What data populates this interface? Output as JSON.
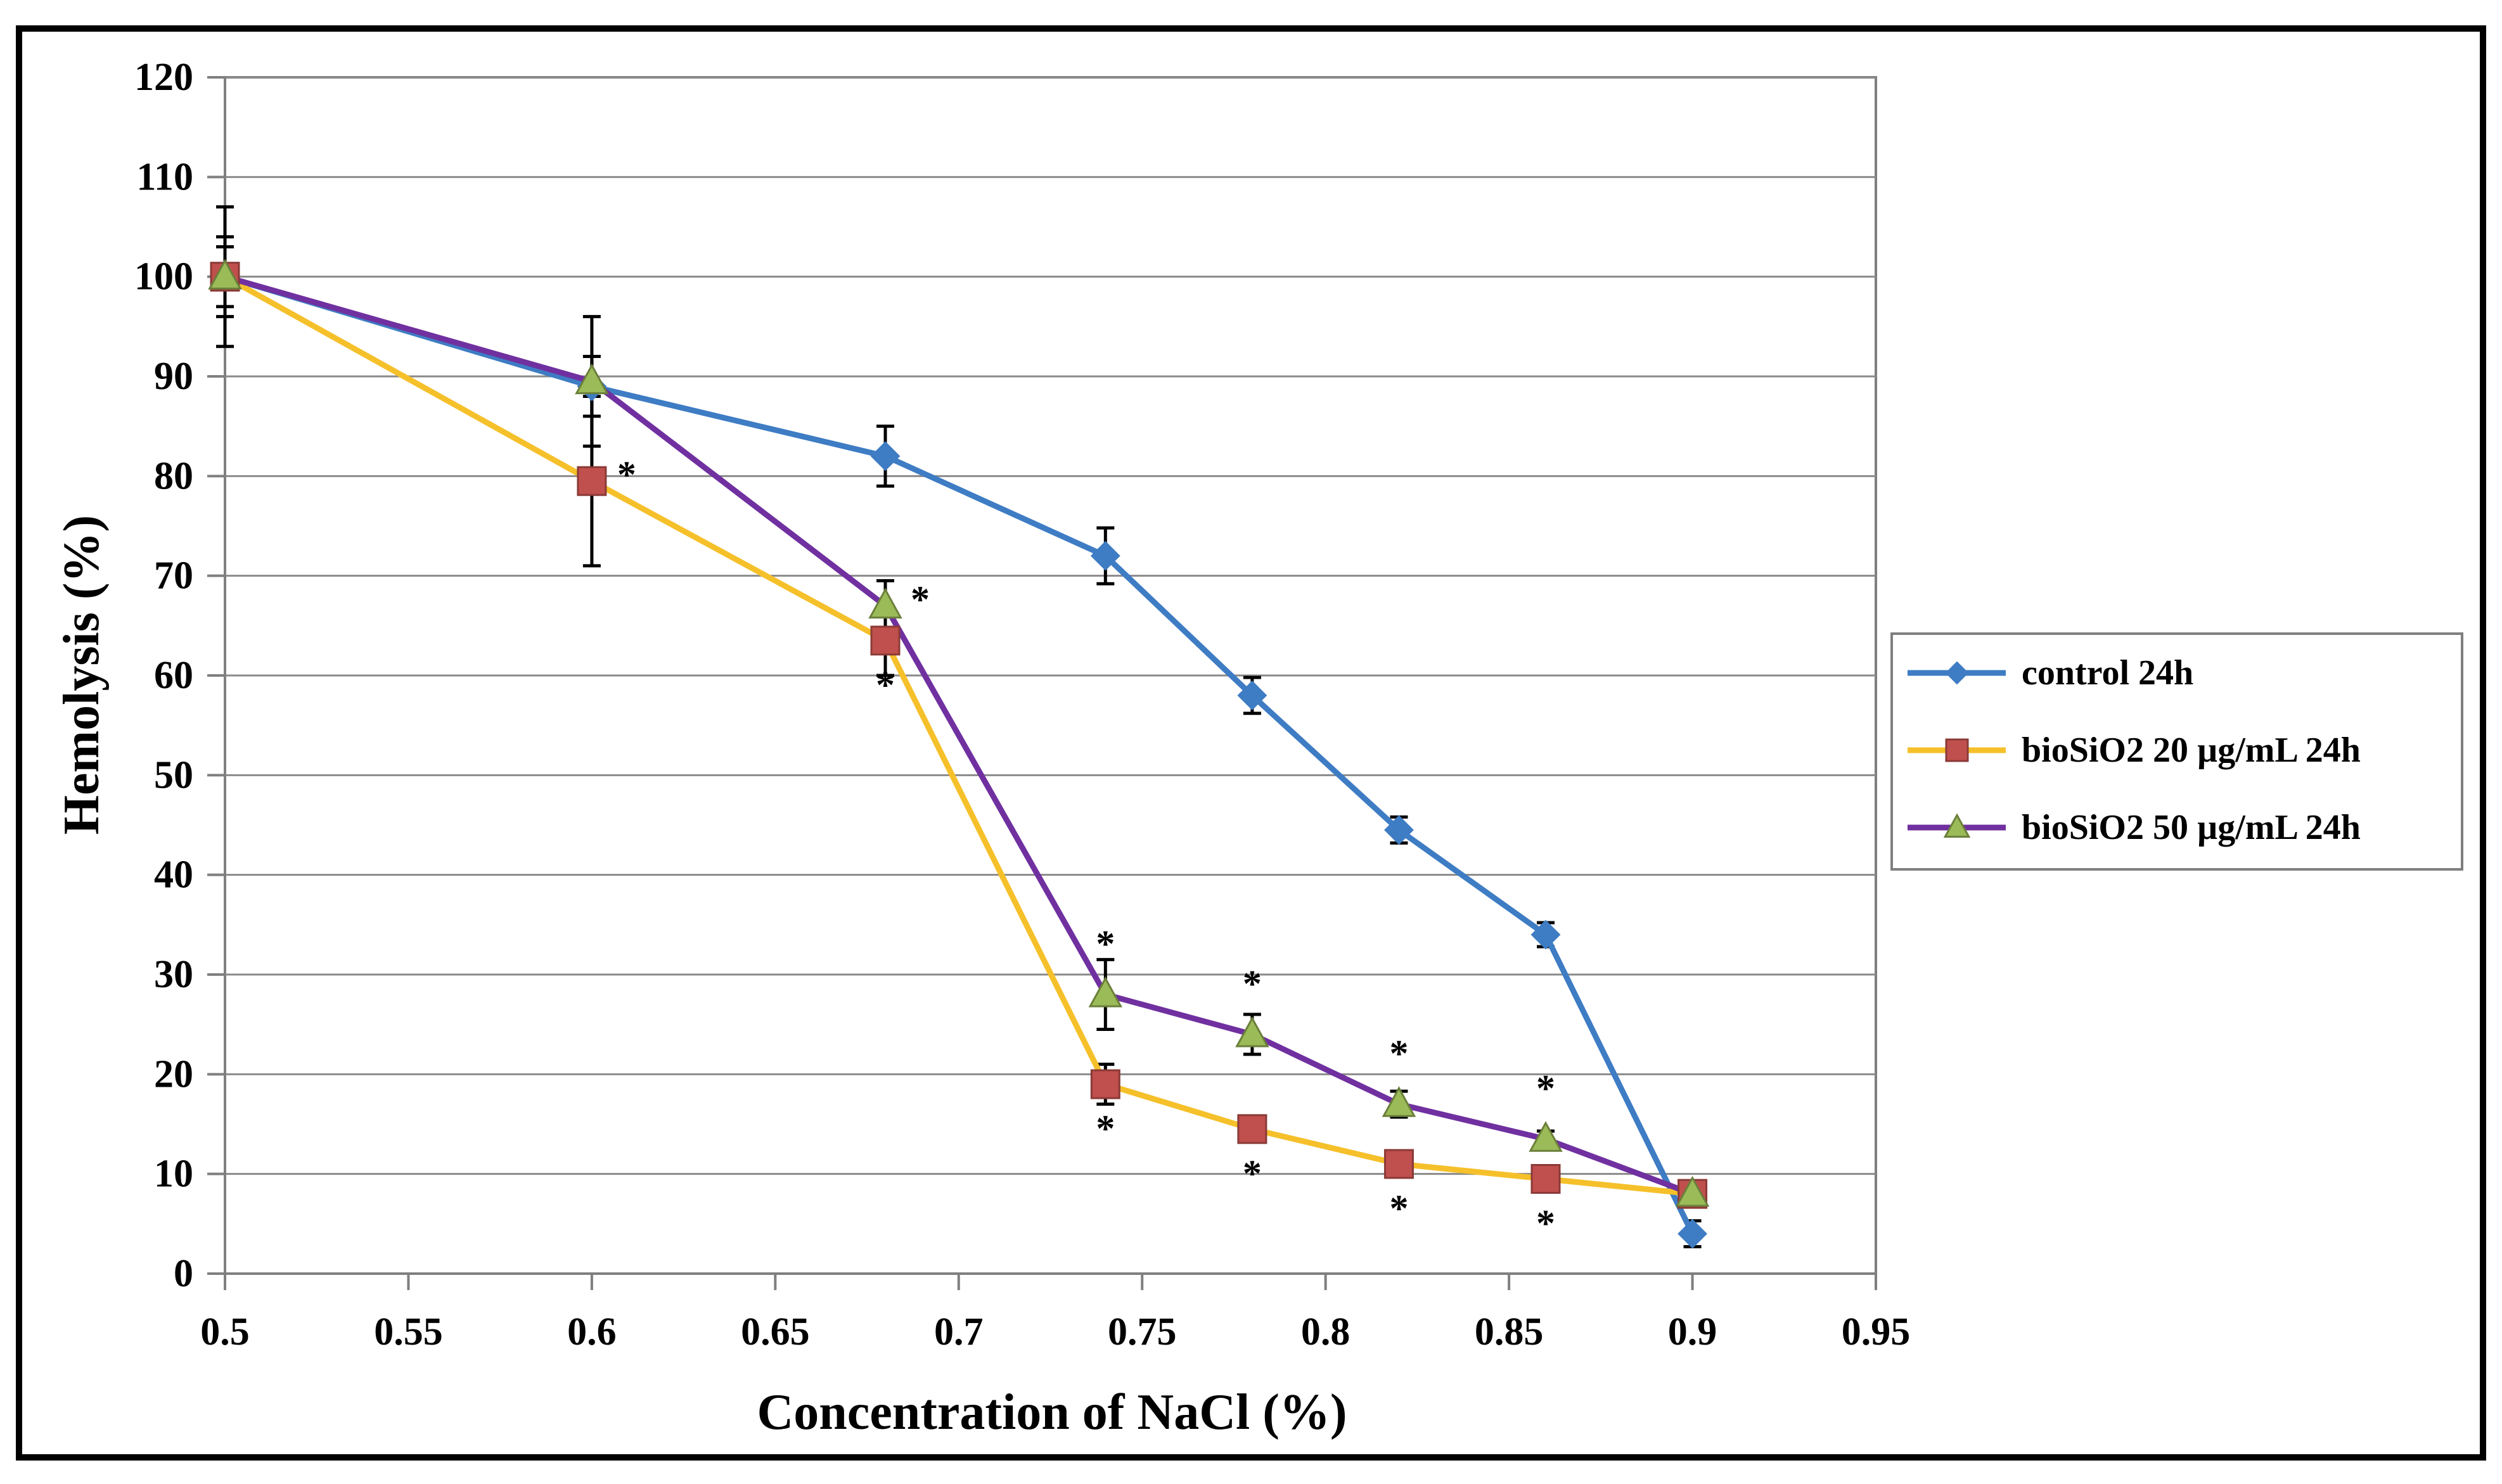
{
  "chart_data": {
    "type": "line",
    "title": "",
    "xlabel": "Concentration of NaCl (%)",
    "ylabel": "Hemolysis (%)",
    "xlim": [
      0.5,
      0.95
    ],
    "ylim": [
      0,
      120
    ],
    "x_ticks": [
      "0.5",
      "0.55",
      "0.6",
      "0.65",
      "0.7",
      "0.75",
      "0.8",
      "0.85",
      "0.9",
      "0.95"
    ],
    "y_ticks": [
      "0",
      "10",
      "20",
      "30",
      "40",
      "50",
      "60",
      "70",
      "80",
      "90",
      "100",
      "110",
      "120"
    ],
    "grid": true,
    "legend_position": "right",
    "series": [
      {
        "name": "control 24h",
        "color": "#3e7cc4",
        "marker": "diamond",
        "x": [
          0.5,
          0.6,
          0.68,
          0.74,
          0.78,
          0.82,
          0.86,
          0.9
        ],
        "y": [
          100,
          89,
          82,
          72,
          58,
          44.5,
          34,
          4
        ],
        "err": [
          7,
          3,
          3,
          2.8,
          1.8,
          1.3,
          1.2,
          1.3
        ],
        "sig": [
          false,
          false,
          false,
          false,
          false,
          false,
          false,
          false
        ],
        "sig_pos": [
          "",
          "",
          "",
          "",
          "",
          "",
          "",
          ""
        ]
      },
      {
        "name": "bioSiO2 20 µg/mL 24h",
        "color": "#f5c02a",
        "marker_color": "#c0504d",
        "marker": "square",
        "x": [
          0.5,
          0.6,
          0.68,
          0.74,
          0.78,
          0.82,
          0.86,
          0.9
        ],
        "y": [
          100,
          79.5,
          63.5,
          19,
          14.5,
          11,
          9.5,
          8
        ],
        "err": [
          3,
          8.5,
          3.5,
          2,
          0,
          0,
          0,
          0
        ],
        "sig": [
          false,
          true,
          true,
          true,
          true,
          true,
          true,
          false
        ],
        "sig_pos": [
          "",
          "right",
          "below",
          "below",
          "below",
          "below",
          "below",
          ""
        ]
      },
      {
        "name": "bioSiO2 50 µg/mL 24h",
        "color": "#7030a0",
        "marker_color": "#9bbb59",
        "marker": "triangle",
        "x": [
          0.5,
          0.6,
          0.68,
          0.74,
          0.78,
          0.82,
          0.86,
          0.9
        ],
        "y": [
          100,
          89.5,
          67,
          28,
          24,
          17,
          13.5,
          8
        ],
        "err": [
          4,
          6.5,
          2.5,
          3.5,
          2,
          1.3,
          0.8,
          0
        ],
        "sig": [
          false,
          false,
          true,
          true,
          true,
          true,
          true,
          false
        ],
        "sig_pos": [
          "",
          "",
          "right",
          "above",
          "above",
          "above",
          "above",
          ""
        ]
      }
    ],
    "annotation_symbol": "*"
  }
}
